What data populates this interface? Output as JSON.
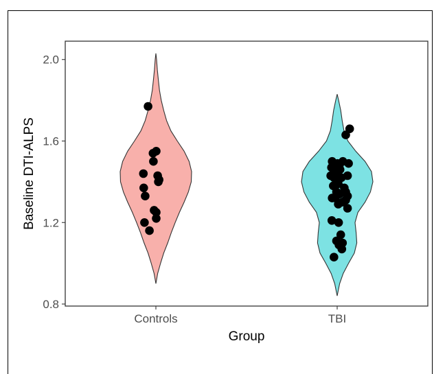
{
  "chart_data": {
    "type": "violin",
    "xlabel": "Group",
    "ylabel": "Baseline DTI-ALPS",
    "categories": [
      "Controls",
      "TBI"
    ],
    "ylim": [
      0.79,
      2.09
    ],
    "yticks": [
      0.8,
      1.2,
      1.6,
      2.0
    ],
    "ytick_labels": [
      "0.8",
      "1.2",
      "1.6",
      "2.0"
    ],
    "grid": false,
    "legend": "none",
    "series": [
      {
        "category": "Controls",
        "color": "#f8b0ab",
        "violin_range": [
          0.9,
          2.03
        ],
        "density_profile": [
          [
            0.9,
            0.0
          ],
          [
            0.95,
            0.05
          ],
          [
            1.0,
            0.13
          ],
          [
            1.05,
            0.22
          ],
          [
            1.1,
            0.33
          ],
          [
            1.15,
            0.43
          ],
          [
            1.2,
            0.54
          ],
          [
            1.25,
            0.66
          ],
          [
            1.3,
            0.79
          ],
          [
            1.35,
            0.91
          ],
          [
            1.4,
            0.99
          ],
          [
            1.45,
            1.0
          ],
          [
            1.5,
            0.93
          ],
          [
            1.55,
            0.79
          ],
          [
            1.6,
            0.6
          ],
          [
            1.65,
            0.42
          ],
          [
            1.7,
            0.3
          ],
          [
            1.75,
            0.22
          ],
          [
            1.8,
            0.15
          ],
          [
            1.85,
            0.1
          ],
          [
            1.9,
            0.07
          ],
          [
            1.95,
            0.04
          ],
          [
            2.0,
            0.02
          ],
          [
            2.03,
            0.0
          ]
        ],
        "points": [
          [
            -0.22,
            1.77
          ],
          [
            -0.35,
            1.44
          ],
          [
            0.01,
            1.55
          ],
          [
            -0.08,
            1.54
          ],
          [
            -0.07,
            1.5
          ],
          [
            0.05,
            1.43
          ],
          [
            0.07,
            1.4
          ],
          [
            0.09,
            1.41
          ],
          [
            -0.34,
            1.37
          ],
          [
            -0.3,
            1.33
          ],
          [
            -0.05,
            1.26
          ],
          [
            0.01,
            1.25
          ],
          [
            0.01,
            1.22
          ],
          [
            -0.32,
            1.2
          ],
          [
            -0.18,
            1.16
          ]
        ]
      },
      {
        "category": "TBI",
        "color": "#7de2e3",
        "violin_range": [
          0.84,
          1.83
        ],
        "density_profile": [
          [
            0.84,
            0.0
          ],
          [
            0.9,
            0.07
          ],
          [
            0.95,
            0.17
          ],
          [
            1.0,
            0.32
          ],
          [
            1.05,
            0.48
          ],
          [
            1.1,
            0.55
          ],
          [
            1.15,
            0.53
          ],
          [
            1.2,
            0.5
          ],
          [
            1.25,
            0.58
          ],
          [
            1.3,
            0.78
          ],
          [
            1.35,
            0.93
          ],
          [
            1.4,
            1.0
          ],
          [
            1.45,
            0.96
          ],
          [
            1.5,
            0.78
          ],
          [
            1.55,
            0.52
          ],
          [
            1.6,
            0.3
          ],
          [
            1.65,
            0.19
          ],
          [
            1.7,
            0.14
          ],
          [
            1.75,
            0.1
          ],
          [
            1.8,
            0.04
          ],
          [
            1.83,
            0.0
          ]
        ],
        "points": [
          [
            0.35,
            1.66
          ],
          [
            0.24,
            1.63
          ],
          [
            -0.14,
            1.5
          ],
          [
            -0.1,
            1.48
          ],
          [
            0.01,
            1.49
          ],
          [
            0.06,
            1.48
          ],
          [
            0.16,
            1.5
          ],
          [
            0.32,
            1.49
          ],
          [
            -0.16,
            1.47
          ],
          [
            -0.06,
            1.46
          ],
          [
            0.08,
            1.46
          ],
          [
            -0.18,
            1.43
          ],
          [
            -0.09,
            1.42
          ],
          [
            -0.02,
            1.43
          ],
          [
            0.12,
            1.42
          ],
          [
            0.29,
            1.43
          ],
          [
            0.03,
            1.39
          ],
          [
            -0.11,
            1.38
          ],
          [
            0.2,
            1.37
          ],
          [
            0.24,
            1.35
          ],
          [
            -0.02,
            1.35
          ],
          [
            0.07,
            1.34
          ],
          [
            0.29,
            1.33
          ],
          [
            -0.05,
            1.32
          ],
          [
            -0.14,
            1.32
          ],
          [
            0.24,
            1.31
          ],
          [
            0.15,
            1.3
          ],
          [
            0.03,
            1.29
          ],
          [
            0.29,
            1.27
          ],
          [
            -0.15,
            1.21
          ],
          [
            0.04,
            1.2
          ],
          [
            0.1,
            1.14
          ],
          [
            -0.02,
            1.11
          ],
          [
            0.15,
            1.1
          ],
          [
            0.05,
            1.09
          ],
          [
            0.13,
            1.07
          ],
          [
            -0.09,
            1.03
          ]
        ]
      }
    ]
  }
}
